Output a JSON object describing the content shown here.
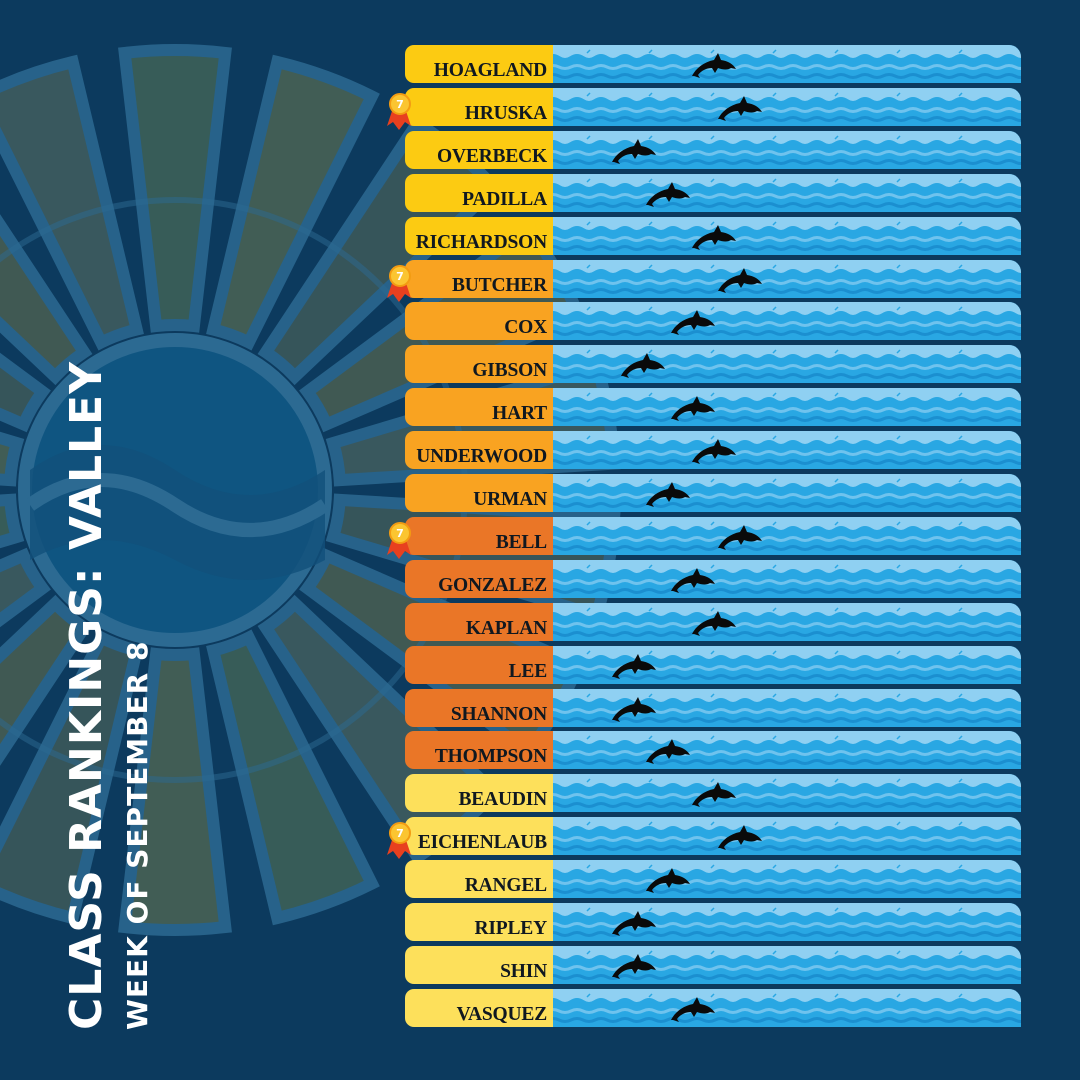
{
  "title": "CLASS RANKINGS: VALLEY",
  "subtitle": "WEEK OF SEPTEMBER 8",
  "colors": {
    "background": "#0c3a5e",
    "water_light": "#8fd0f2",
    "water_mid": "#29a7e3",
    "water_deep": "#1b8fd0",
    "dolphin": "#0a0a0a"
  },
  "groups": [
    {
      "color": "#fccb12"
    },
    {
      "color": "#f9a321"
    },
    {
      "color": "#ea7627"
    },
    {
      "color": "#fde05b"
    }
  ],
  "rows": [
    {
      "name": "HOAGLAND",
      "group": 0,
      "progress": 0.34,
      "medal": false
    },
    {
      "name": "HRUSKA",
      "group": 0,
      "progress": 0.4,
      "medal": true
    },
    {
      "name": "OVERBECK",
      "group": 0,
      "progress": 0.15,
      "medal": false
    },
    {
      "name": "PADILLA",
      "group": 0,
      "progress": 0.23,
      "medal": false
    },
    {
      "name": "RICHARDSON",
      "group": 0,
      "progress": 0.34,
      "medal": false
    },
    {
      "name": "BUTCHER",
      "group": 1,
      "progress": 0.4,
      "medal": true
    },
    {
      "name": "COX",
      "group": 1,
      "progress": 0.29,
      "medal": false
    },
    {
      "name": "GIBSON",
      "group": 1,
      "progress": 0.17,
      "medal": false
    },
    {
      "name": "HART",
      "group": 1,
      "progress": 0.29,
      "medal": false
    },
    {
      "name": "UNDERWOOD",
      "group": 1,
      "progress": 0.34,
      "medal": false
    },
    {
      "name": "URMAN",
      "group": 1,
      "progress": 0.23,
      "medal": false
    },
    {
      "name": "BELL",
      "group": 2,
      "progress": 0.4,
      "medal": true
    },
    {
      "name": "GONZALEZ",
      "group": 2,
      "progress": 0.29,
      "medal": false
    },
    {
      "name": "KAPLAN",
      "group": 2,
      "progress": 0.34,
      "medal": false
    },
    {
      "name": "LEE",
      "group": 2,
      "progress": 0.15,
      "medal": false
    },
    {
      "name": "SHANNON",
      "group": 2,
      "progress": 0.15,
      "medal": false
    },
    {
      "name": "THOMPSON",
      "group": 2,
      "progress": 0.23,
      "medal": false
    },
    {
      "name": "BEAUDIN",
      "group": 3,
      "progress": 0.34,
      "medal": false
    },
    {
      "name": "EICHENLAUB",
      "group": 3,
      "progress": 0.4,
      "medal": true
    },
    {
      "name": "RANGEL",
      "group": 3,
      "progress": 0.23,
      "medal": false
    },
    {
      "name": "RIPLEY",
      "group": 3,
      "progress": 0.15,
      "medal": false
    },
    {
      "name": "SHIN",
      "group": 3,
      "progress": 0.15,
      "medal": false
    },
    {
      "name": "VASQUEZ",
      "group": 3,
      "progress": 0.29,
      "medal": false
    }
  ],
  "medal_badge_text": "7"
}
